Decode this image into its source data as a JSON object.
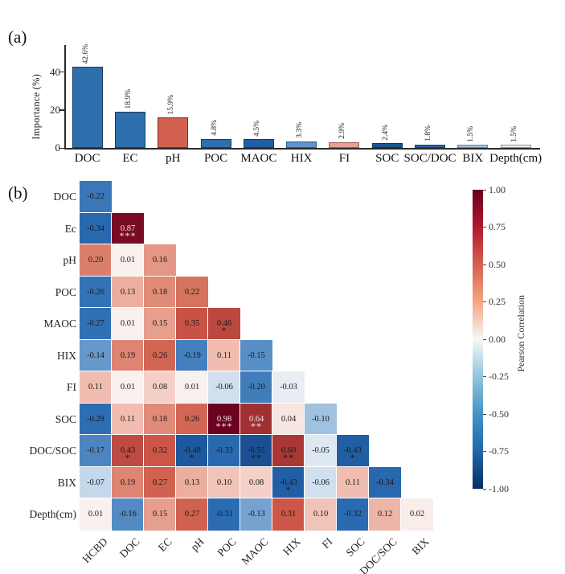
{
  "panel_a": {
    "label": "(a)"
  },
  "panel_b": {
    "label": "(b)"
  },
  "chart_data": [
    {
      "type": "bar",
      "title": "",
      "xlabel": "",
      "ylabel": "Importance (%)",
      "yticks": [
        0,
        20,
        40
      ],
      "ylim": [
        0,
        57
      ],
      "grid": false,
      "categories": [
        "DOC",
        "EC",
        "pH",
        "POC",
        "MAOC",
        "HIX",
        "FI",
        "SOC",
        "SOC/DOC",
        "BIX",
        "Depth(cm)"
      ],
      "values": [
        42.6,
        18.9,
        15.9,
        4.8,
        4.5,
        3.3,
        2.9,
        2.4,
        1.8,
        1.5,
        1.5
      ],
      "value_labels": [
        "42.6%",
        "18.9%",
        "15.9%",
        "4.8%",
        "4.5%",
        "3.3%",
        "2.9%",
        "2.4%",
        "1.8%",
        "1.5%",
        "1.5%"
      ],
      "bar_colors": [
        "#2e6fad",
        "#2e6fad",
        "#d2604e",
        "#2e6fad",
        "#1f5fa6",
        "#5e94c9",
        "#e5a294",
        "#1c5692",
        "#2a66a9",
        "#a6c5e1",
        "#f2f1ed"
      ],
      "bar_border_colors": [
        "#1a3a5c",
        "#1a3a5c",
        "#7e3020",
        "#1a3a5c",
        "#14365c",
        "#2c5a86",
        "#9a5c4e",
        "#0f3252",
        "#173c66",
        "#5b82a6",
        "#8a8a8a"
      ]
    },
    {
      "type": "heatmap",
      "title": "",
      "rows": [
        "DOC",
        "Ec",
        "pH",
        "POC",
        "MAOC",
        "HIX",
        "FI",
        "SOC",
        "DOC/SOC",
        "BIX",
        "Depth(cm)"
      ],
      "columns": [
        "HCBD",
        "DOC",
        "EC",
        "pH",
        "POC",
        "MAOC",
        "HIX",
        "FI",
        "SOC",
        "DOC/SOC",
        "BIX"
      ],
      "cells": [
        [
          {
            "v": -0.22
          }
        ],
        [
          {
            "v": -0.34
          },
          {
            "v": 0.87,
            "sig": "***"
          }
        ],
        [
          {
            "v": 0.2
          },
          {
            "v": 0.01
          },
          {
            "v": 0.16
          }
        ],
        [
          {
            "v": -0.26
          },
          {
            "v": 0.13
          },
          {
            "v": 0.18
          },
          {
            "v": 0.22
          }
        ],
        [
          {
            "v": -0.27
          },
          {
            "v": 0.01
          },
          {
            "v": 0.15
          },
          {
            "v": 0.35
          },
          {
            "v": 0.46,
            "sig": "*"
          }
        ],
        [
          {
            "v": -0.14
          },
          {
            "v": 0.19
          },
          {
            "v": 0.26
          },
          {
            "v": -0.19
          },
          {
            "v": 0.11
          },
          {
            "v": -0.15
          }
        ],
        [
          {
            "v": 0.11
          },
          {
            "v": 0.01
          },
          {
            "v": 0.08
          },
          {
            "v": 0.01
          },
          {
            "v": -0.06
          },
          {
            "v": -0.2
          },
          {
            "v": -0.03
          }
        ],
        [
          {
            "v": -0.29
          },
          {
            "v": 0.11
          },
          {
            "v": 0.18
          },
          {
            "v": 0.26
          },
          {
            "v": 0.98,
            "sig": "***"
          },
          {
            "v": 0.64,
            "sig": "**"
          },
          {
            "v": 0.04
          },
          {
            "v": -0.1
          }
        ],
        [
          {
            "v": -0.17
          },
          {
            "v": 0.43,
            "sig": "*"
          },
          {
            "v": 0.32
          },
          {
            "v": -0.48,
            "sig": "*"
          },
          {
            "v": -0.33
          },
          {
            "v": -0.55,
            "sig": "**"
          },
          {
            "v": 0.6,
            "sig": "**"
          },
          {
            "v": -0.05
          },
          {
            "v": -0.43,
            "sig": "*"
          }
        ],
        [
          {
            "v": -0.07
          },
          {
            "v": 0.19
          },
          {
            "v": 0.27
          },
          {
            "v": 0.13
          },
          {
            "v": 0.1
          },
          {
            "v": 0.08
          },
          {
            "v": -0.43,
            "sig": "*"
          },
          {
            "v": -0.06
          },
          {
            "v": 0.11
          },
          {
            "v": -0.34
          }
        ],
        [
          {
            "v": 0.01
          },
          {
            "v": -0.16
          },
          {
            "v": 0.15
          },
          {
            "v": 0.27
          },
          {
            "v": -0.31
          },
          {
            "v": -0.13
          },
          {
            "v": 0.31
          },
          {
            "v": 0.1
          },
          {
            "v": -0.32
          },
          {
            "v": 0.12
          },
          {
            "v": 0.02
          }
        ]
      ],
      "colorbar": {
        "label": "Pearson Correlation",
        "tick_labels": [
          "1.00",
          "0.75",
          "0.50",
          "0.25",
          "0.00",
          "-0.25",
          "-0.50",
          "-0.75",
          "-1.00"
        ],
        "range": [
          -1,
          1
        ],
        "positive_color": "#67001f",
        "mid_color": "#f7f7f7",
        "negative_color": "#053061"
      }
    }
  ]
}
